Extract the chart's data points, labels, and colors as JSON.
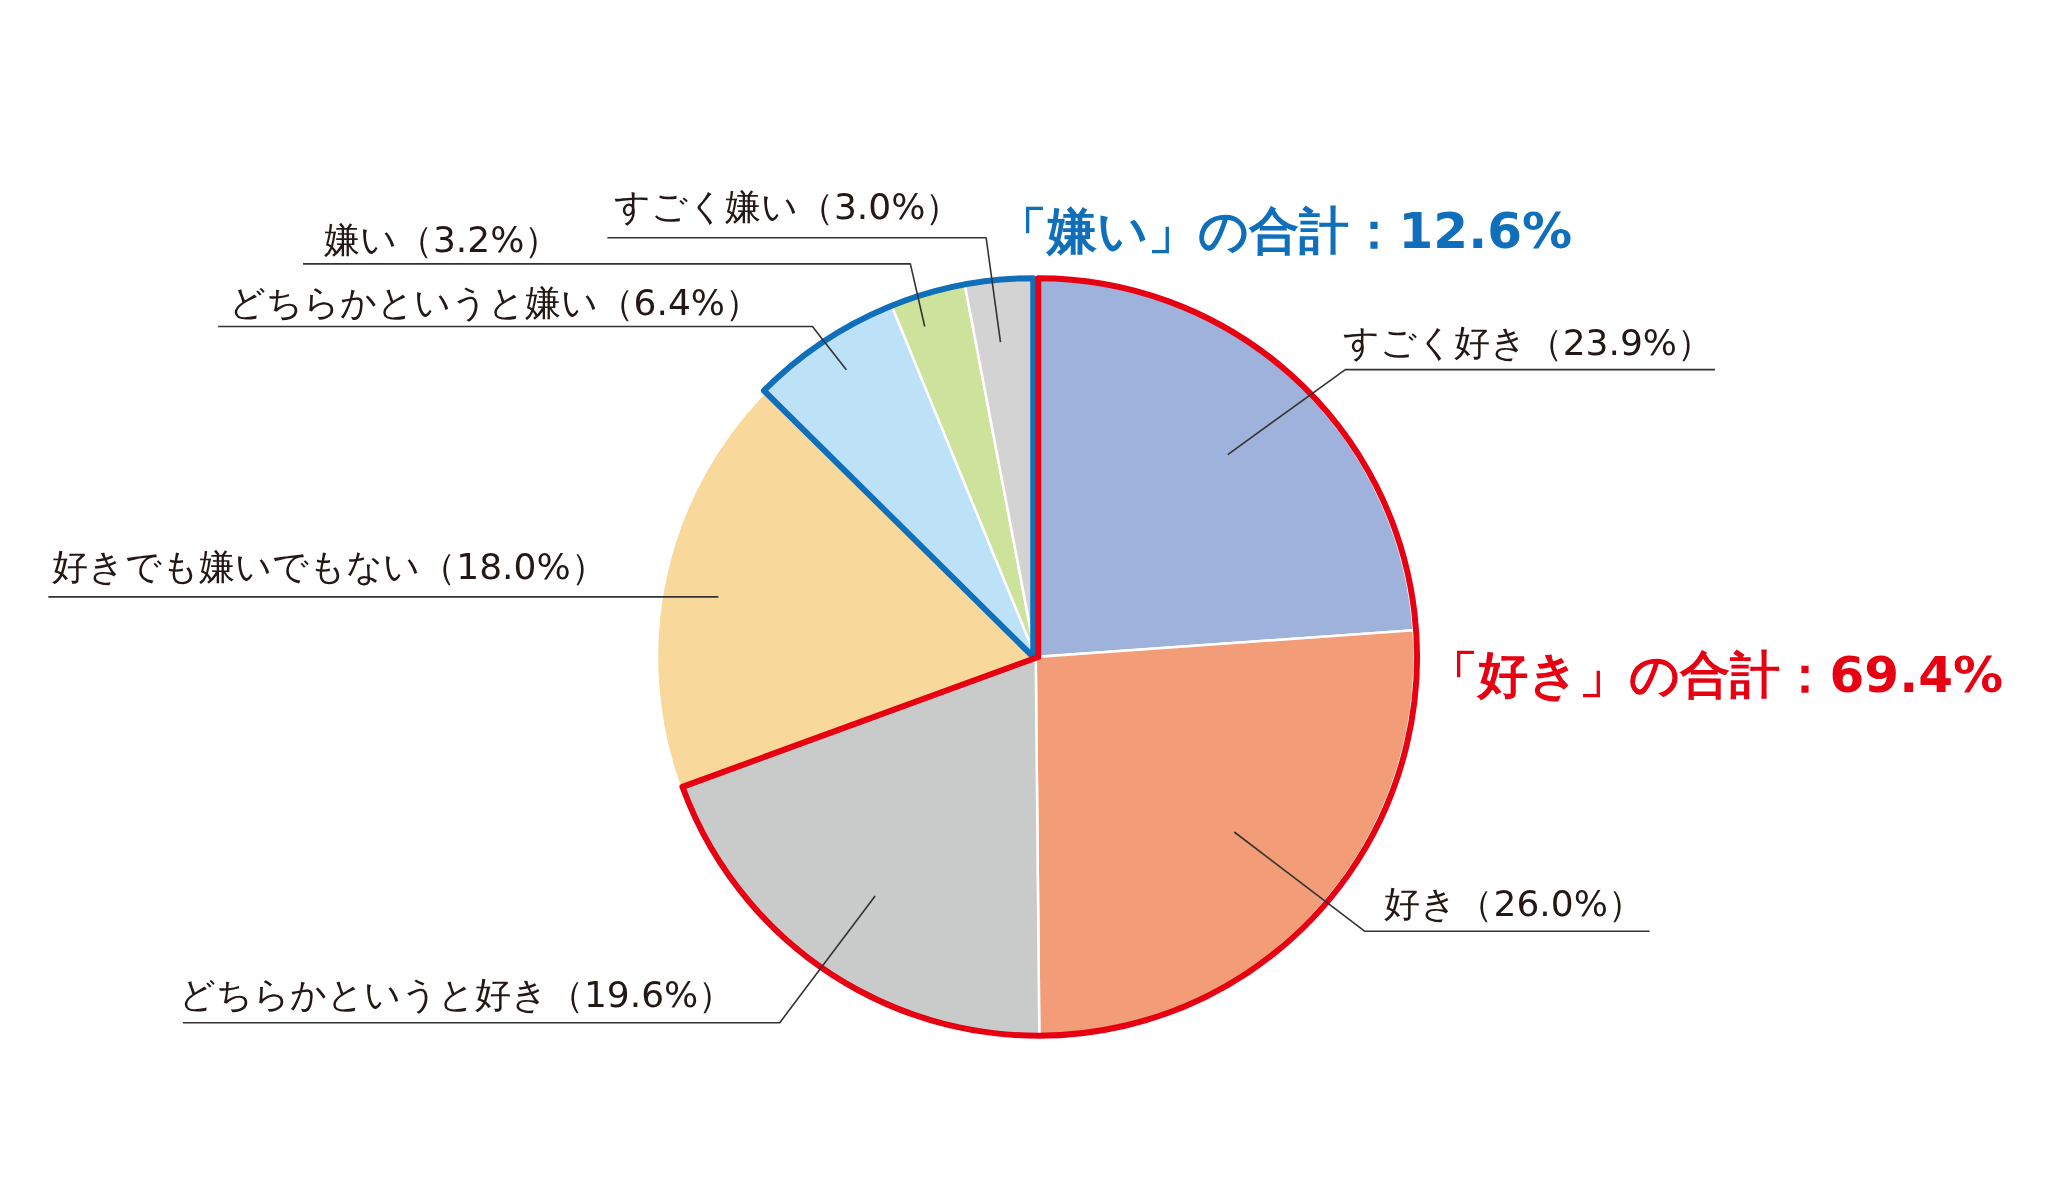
{
  "chart_data": {
    "type": "pie",
    "categories": [
      "すごく好き",
      "好き",
      "どちらかというと好き",
      "好きでも嫌いでもない",
      "どちらかというと嫌い",
      "嫌い",
      "すごく嫌い"
    ],
    "values": [
      23.9,
      26.0,
      19.6,
      18.0,
      6.4,
      3.2,
      3.0
    ],
    "colors": [
      "#9eb2dc",
      "#f29c78",
      "#c9caca",
      "#f9d89c",
      "#bde2f8",
      "#cde29a",
      "#d3d3d4"
    ],
    "value_labels": [
      "（23.9%）",
      "（26.0%）",
      "（19.6%）",
      "（18.0%）",
      "（6.4%）",
      "（3.2%）",
      "（3.0%）"
    ],
    "annotations": [
      "「嫌い」の合計：12.6%",
      "「好き」の合計：69.4%"
    ]
  }
}
